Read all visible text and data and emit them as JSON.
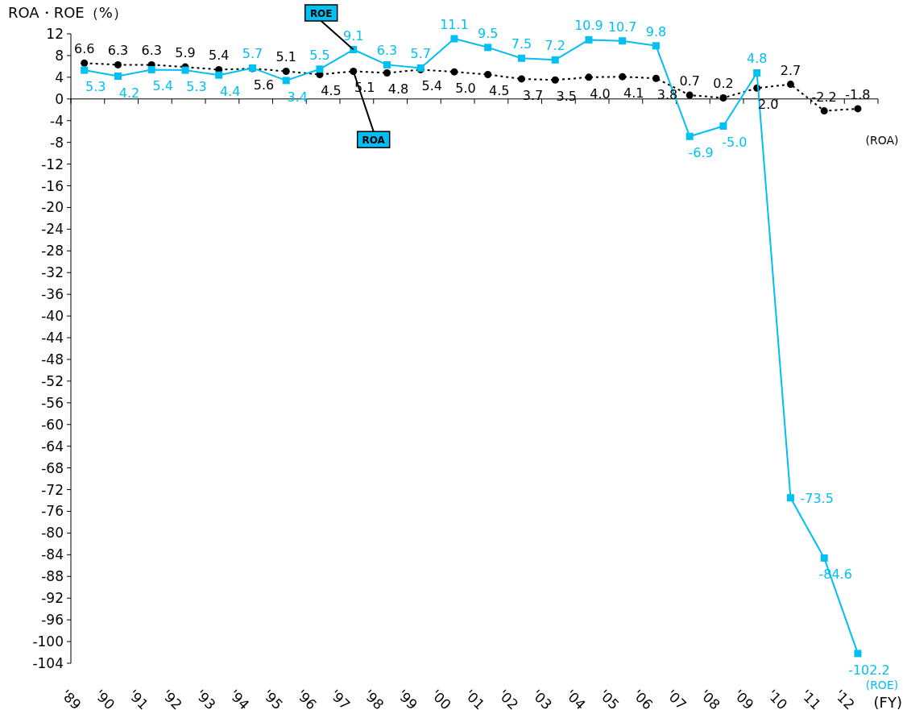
{
  "chart_data": {
    "type": "line",
    "ylabel": "ROA・ROE（%）",
    "xlabel": "(FY)",
    "categories": [
      "'89",
      "'90",
      "'91",
      "'92",
      "'93",
      "'94",
      "'95",
      "'96",
      "'97",
      "'98",
      "'99",
      "'00",
      "'01",
      "'02",
      "'03",
      "'04",
      "'05",
      "'06",
      "'07",
      "'08",
      "'09",
      "'10",
      "'11",
      "'12"
    ],
    "series": [
      {
        "name": "ROA",
        "color": "#000000",
        "marker": "circle",
        "line_style": "dotted",
        "values": [
          6.6,
          6.3,
          6.3,
          5.9,
          5.4,
          5.6,
          5.1,
          4.5,
          5.1,
          4.8,
          5.4,
          5.0,
          4.5,
          3.7,
          3.5,
          4.0,
          4.1,
          3.8,
          0.7,
          0.2,
          2.0,
          2.7,
          -2.2,
          -1.8
        ],
        "value_labels": [
          "6.6",
          "6.3",
          "6.3",
          "5.9",
          "5.4",
          "5.6",
          "5.1",
          "4.5",
          "5.1",
          "4.8",
          "5.4",
          "5.0",
          "4.5",
          "3.7",
          "3.5",
          "4.0",
          "4.1",
          "3.8",
          "0.7",
          "0.2",
          "2.0",
          "2.7",
          "-2.2",
          "-1.8"
        ]
      },
      {
        "name": "ROE",
        "color": "#00bff3",
        "marker": "square",
        "line_style": "solid",
        "values": [
          5.3,
          4.2,
          5.4,
          5.3,
          4.4,
          5.7,
          3.4,
          5.5,
          9.1,
          6.3,
          5.7,
          11.1,
          9.5,
          7.5,
          7.2,
          10.9,
          10.7,
          9.8,
          -6.9,
          -5.0,
          4.8,
          -73.5,
          -84.6,
          -102.2
        ],
        "value_labels": [
          "5.3",
          "4.2",
          "5.4",
          "5.3",
          "4.4",
          "5.7",
          "3.4",
          "5.5",
          "9.1",
          "6.3",
          "5.7",
          "11.1",
          "9.5",
          "7.5",
          "7.2",
          "10.9",
          "10.7",
          "9.8",
          "-6.9",
          "-5.0",
          "4.8",
          "-73.5",
          "-84.6",
          "-102.2"
        ]
      }
    ],
    "ylim": [
      -104,
      12
    ],
    "yticks": [
      12,
      8,
      4,
      0,
      -4,
      -8,
      -12,
      -16,
      -20,
      -24,
      -28,
      -32,
      -36,
      -40,
      -44,
      -48,
      -52,
      -56,
      -60,
      -64,
      -68,
      -72,
      -76,
      -80,
      -84,
      -88,
      -92,
      -96,
      -100,
      -104
    ],
    "annotations": [
      "(ROA)",
      "(ROE)"
    ]
  }
}
